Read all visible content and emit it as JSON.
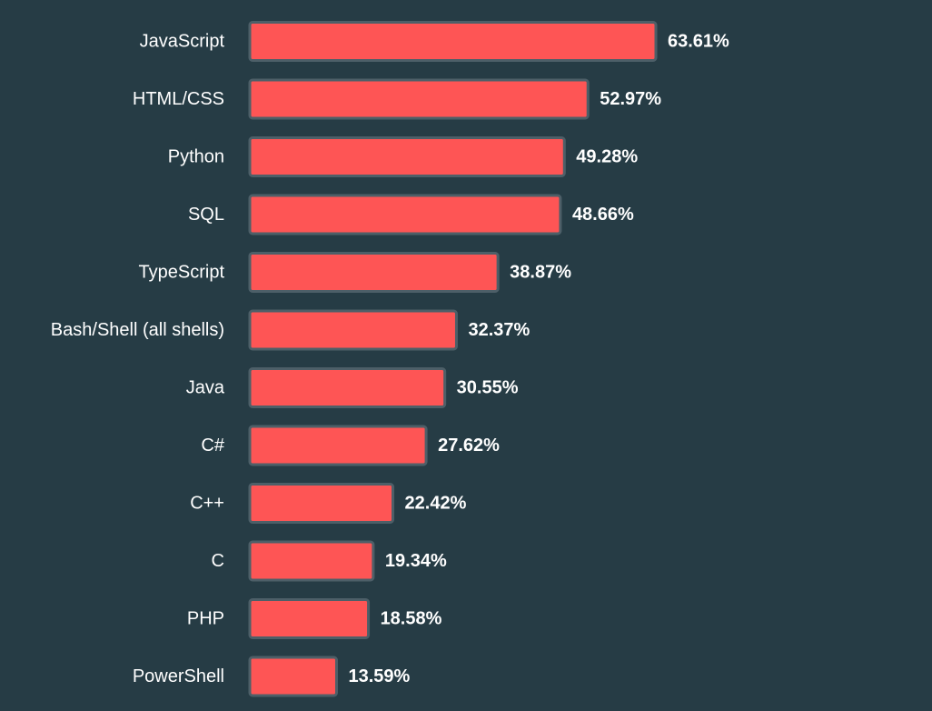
{
  "chart_data": {
    "type": "bar",
    "orientation": "horizontal",
    "title": "",
    "xlabel": "",
    "ylabel": "",
    "xlim": [
      0,
      63.61
    ],
    "grid": false,
    "value_suffix": "%",
    "colors": {
      "background": "#263c45",
      "bar_fill": "#fe5555",
      "bar_border": "#4d5f68",
      "text": "#ffffff"
    },
    "categories": [
      "JavaScript",
      "HTML/CSS",
      "Python",
      "SQL",
      "TypeScript",
      "Bash/Shell (all shells)",
      "Java",
      "C#",
      "C++",
      "C",
      "PHP",
      "PowerShell"
    ],
    "values": [
      63.61,
      52.97,
      49.28,
      48.66,
      38.87,
      32.37,
      30.55,
      27.62,
      22.42,
      19.34,
      18.58,
      13.59
    ],
    "value_labels": [
      "63.61%",
      "52.97%",
      "49.28%",
      "48.66%",
      "38.87%",
      "32.37%",
      "30.55%",
      "27.62%",
      "22.42%",
      "19.34%",
      "18.58%",
      "13.59%"
    ]
  }
}
